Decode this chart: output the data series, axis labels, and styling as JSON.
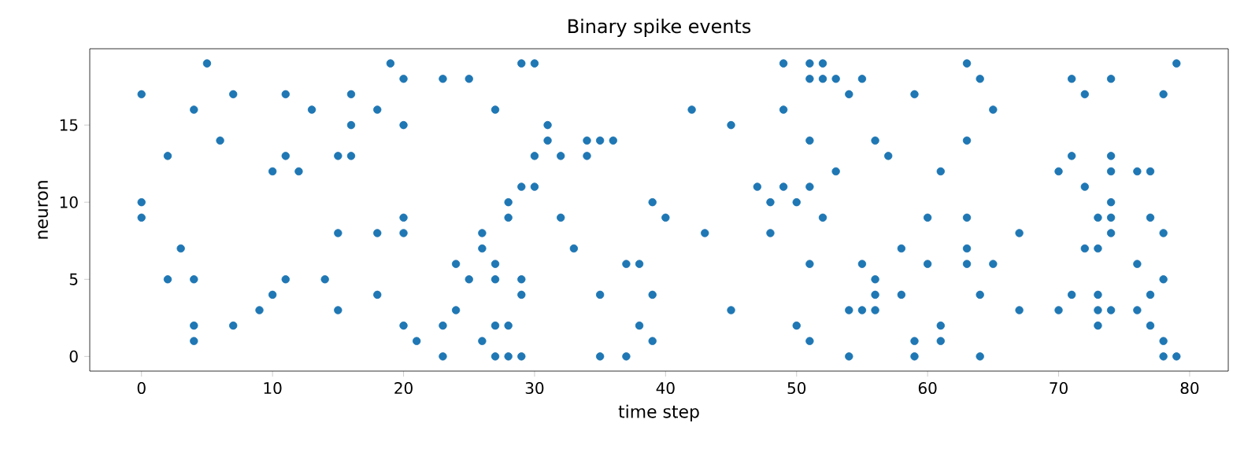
{
  "chart_data": {
    "type": "scatter",
    "title": "Binary spike events",
    "xlabel": "time step",
    "ylabel": "neuron",
    "xlim": [
      -3.95,
      82.95
    ],
    "ylim": [
      -0.95,
      19.95
    ],
    "xticks": [
      0,
      10,
      20,
      30,
      40,
      50,
      60,
      70,
      80
    ],
    "yticks": [
      0,
      5,
      10,
      15
    ],
    "grid": false,
    "series": [
      {
        "color": "#1f77b4",
        "x": [
          0,
          0,
          0,
          2,
          2,
          3,
          4,
          4,
          4,
          4,
          5,
          6,
          7,
          7,
          9,
          10,
          10,
          11,
          11,
          11,
          12,
          13,
          14,
          15,
          15,
          15,
          16,
          16,
          16,
          18,
          18,
          18,
          19,
          20,
          20,
          20,
          20,
          20,
          21,
          23,
          23,
          23,
          24,
          24,
          25,
          25,
          26,
          26,
          26,
          27,
          27,
          27,
          27,
          27,
          28,
          28,
          28,
          28,
          29,
          29,
          29,
          29,
          29,
          30,
          30,
          30,
          31,
          31,
          32,
          32,
          33,
          34,
          34,
          35,
          35,
          35,
          36,
          37,
          37,
          38,
          38,
          39,
          39,
          39,
          40,
          42,
          43,
          45,
          45,
          47,
          48,
          48,
          49,
          49,
          49,
          50,
          50,
          51,
          51,
          51,
          51,
          51,
          51,
          52,
          52,
          52,
          53,
          53,
          54,
          54,
          54,
          55,
          55,
          55,
          56,
          56,
          56,
          56,
          57,
          58,
          58,
          59,
          59,
          59,
          60,
          60,
          61,
          61,
          61,
          63,
          63,
          63,
          63,
          63,
          64,
          64,
          64,
          65,
          65,
          67,
          67,
          70,
          70,
          71,
          71,
          71,
          72,
          72,
          72,
          73,
          73,
          73,
          73,
          73,
          74,
          74,
          74,
          74,
          74,
          74,
          74,
          76,
          76,
          76,
          77,
          77,
          77,
          77,
          78,
          78,
          78,
          78,
          78,
          79,
          79
        ],
        "values": [
          17,
          10,
          9,
          13,
          5,
          7,
          16,
          5,
          2,
          1,
          19,
          14,
          17,
          2,
          3,
          12,
          4,
          17,
          13,
          5,
          12,
          16,
          5,
          13,
          8,
          3,
          17,
          15,
          13,
          16,
          8,
          4,
          19,
          18,
          15,
          9,
          8,
          2,
          1,
          18,
          2,
          0,
          6,
          3,
          18,
          5,
          8,
          7,
          1,
          16,
          6,
          5,
          2,
          0,
          10,
          9,
          2,
          0,
          19,
          11,
          5,
          4,
          0,
          19,
          13,
          11,
          15,
          14,
          13,
          9,
          7,
          14,
          13,
          14,
          4,
          0,
          14,
          6,
          0,
          6,
          2,
          10,
          4,
          1,
          9,
          16,
          8,
          15,
          3,
          11,
          10,
          8,
          19,
          16,
          11,
          10,
          2,
          19,
          18,
          14,
          11,
          6,
          1,
          19,
          18,
          9,
          18,
          12,
          17,
          3,
          0,
          18,
          6,
          3,
          14,
          5,
          4,
          3,
          13,
          7,
          4,
          17,
          1,
          0,
          9,
          6,
          12,
          2,
          1,
          19,
          14,
          9,
          7,
          6,
          18,
          4,
          0,
          16,
          6,
          8,
          3,
          12,
          3,
          18,
          13,
          4,
          17,
          11,
          7,
          9,
          7,
          4,
          3,
          2,
          18,
          13,
          12,
          10,
          9,
          8,
          3,
          12,
          6,
          3,
          12,
          9,
          4,
          2,
          17,
          8,
          5,
          1,
          0,
          19,
          0
        ]
      }
    ]
  }
}
